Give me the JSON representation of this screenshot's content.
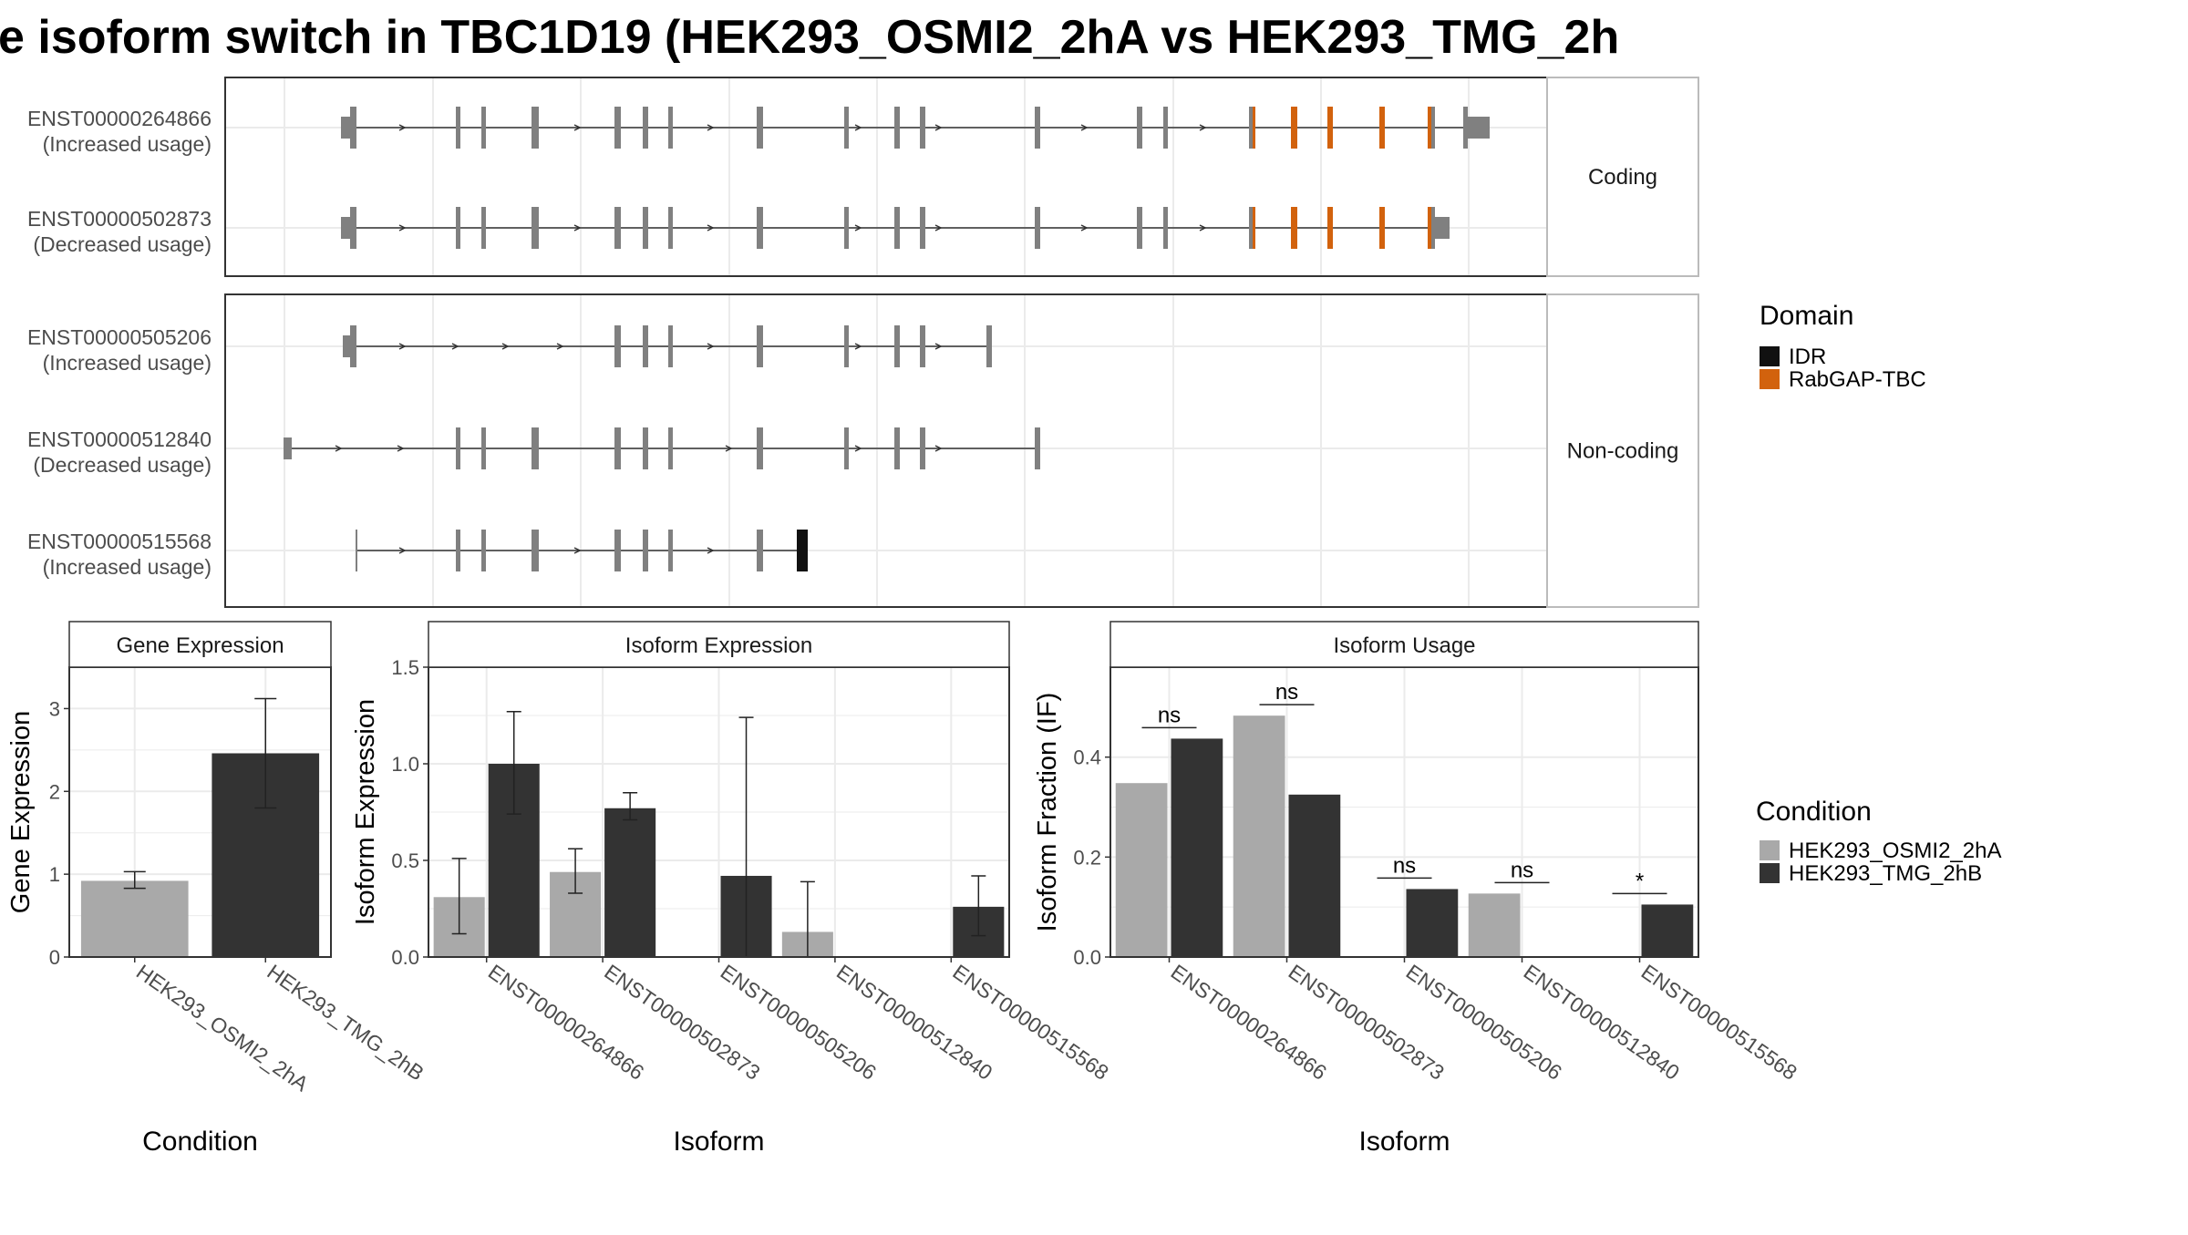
{
  "title": "e isoform switch in TBC1D19 (HEK293_OSMI2_2hA vs HEK293_TMG_2h",
  "colors": {
    "cond_a": "#a9a9a9",
    "cond_b": "#333333",
    "exon": "#808080",
    "idr": "#111111",
    "rabgap": "#d2620d",
    "grid": "#ebebeb",
    "panel_border": "#333333",
    "strip_bg": "#ffffff"
  },
  "structure": {
    "facets": [
      {
        "label": "Coding",
        "transcripts": [
          {
            "id": "ENST00000264866",
            "usage": "(Increased usage)"
          },
          {
            "id": "ENST00000502873",
            "usage": "(Decreased usage)"
          }
        ]
      },
      {
        "label": "Non-coding",
        "transcripts": [
          {
            "id": "ENST00000505206",
            "usage": "(Increased usage)"
          },
          {
            "id": "ENST00000512840",
            "usage": "(Decreased usage)"
          },
          {
            "id": "ENST00000515568",
            "usage": "(Increased usage)"
          }
        ]
      }
    ],
    "legend": {
      "title": "Domain",
      "items": [
        {
          "label": "IDR",
          "color": "#111111"
        },
        {
          "label": "RabGAP-TBC",
          "color": "#d2620d"
        }
      ]
    }
  },
  "chart_data": [
    {
      "type": "bar",
      "title": "Gene Expression",
      "xlabel": "Condition",
      "ylabel": "Gene Expression",
      "categories": [
        "HEK293_OSMI2_2hA",
        "HEK293_TMG_2hB"
      ],
      "values": [
        0.92,
        2.46
      ],
      "error_low": [
        0.83,
        1.8
      ],
      "error_high": [
        1.03,
        3.12
      ],
      "ylim": [
        0,
        3.5
      ],
      "yticks": [
        "0",
        "1",
        "2",
        "3"
      ],
      "ytick_values": [
        0,
        1,
        2,
        3
      ]
    },
    {
      "type": "bar",
      "title": "Isoform Expression",
      "xlabel": "Isoform",
      "ylabel": "Isoform Expression",
      "categories": [
        "ENST00000264866",
        "ENST00000502873",
        "ENST00000505206",
        "ENST00000512840",
        "ENST00000515568"
      ],
      "series": [
        {
          "name": "HEK293_OSMI2_2hA",
          "values": [
            0.31,
            0.44,
            0.0,
            0.13,
            0.0
          ],
          "error_low": [
            0.12,
            0.33,
            0.0,
            0.0,
            0.0
          ],
          "error_high": [
            0.51,
            0.56,
            0.0,
            0.39,
            0.0
          ]
        },
        {
          "name": "HEK293_TMG_2hB",
          "values": [
            1.0,
            0.77,
            0.42,
            0.0,
            0.26
          ],
          "error_low": [
            0.74,
            0.71,
            0.0,
            0.0,
            0.11
          ],
          "error_high": [
            1.27,
            0.85,
            1.24,
            0.0,
            0.42
          ]
        }
      ],
      "ylim": [
        0,
        1.5
      ],
      "yticks": [
        "0.0",
        "0.5",
        "1.0",
        "1.5"
      ],
      "ytick_values": [
        0,
        0.5,
        1.0,
        1.5
      ]
    },
    {
      "type": "bar",
      "title": "Isoform Usage",
      "xlabel": "Isoform",
      "ylabel": "Isoform Fraction (IF)",
      "categories": [
        "ENST00000264866",
        "ENST00000502873",
        "ENST00000505206",
        "ENST00000512840",
        "ENST00000515568"
      ],
      "series": [
        {
          "name": "HEK293_OSMI2_2hA",
          "values": [
            0.348,
            0.483,
            0.0,
            0.127,
            0.0
          ]
        },
        {
          "name": "HEK293_TMG_2hB",
          "values": [
            0.437,
            0.325,
            0.136,
            0.0,
            0.105
          ]
        }
      ],
      "significance": [
        "ns",
        "ns",
        "ns",
        "ns",
        "*"
      ],
      "ylim": [
        0,
        0.58
      ],
      "yticks": [
        "0.0",
        "0.2",
        "0.4"
      ],
      "ytick_values": [
        0,
        0.2,
        0.4
      ]
    }
  ],
  "condition_legend": {
    "title": "Condition",
    "items": [
      {
        "label": "HEK293_OSMI2_2hA",
        "color": "#a9a9a9"
      },
      {
        "label": "HEK293_TMG_2hB",
        "color": "#333333"
      }
    ]
  }
}
